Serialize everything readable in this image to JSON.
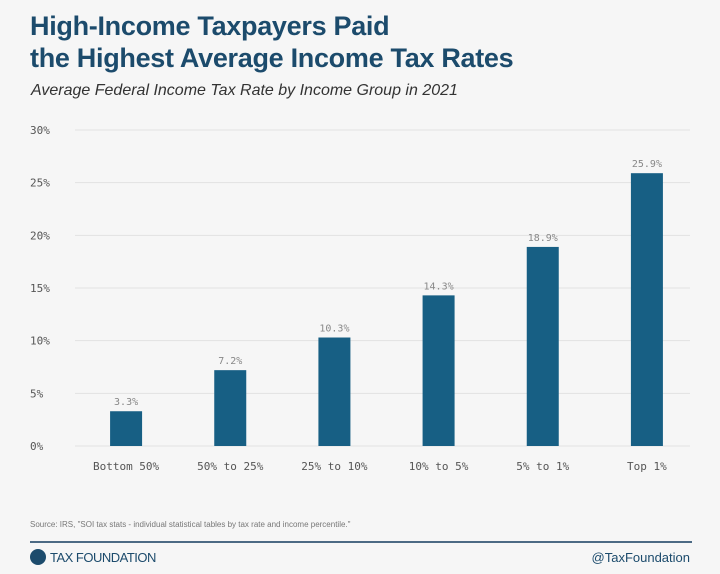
{
  "chart_data": {
    "type": "bar",
    "title": "High-Income Taxpayers Paid\nthe Highest Average Income Tax Rates",
    "subtitle": "Average Federal Income Tax Rate by Income Group in 2021",
    "categories": [
      "Bottom 50%",
      "50% to 25%",
      "25% to 10%",
      "10% to 5%",
      "5% to 1%",
      "Top 1%"
    ],
    "values": [
      3.3,
      7.2,
      10.3,
      14.3,
      18.9,
      25.9
    ],
    "data_labels": [
      "3.3%",
      "7.2%",
      "10.3%",
      "14.3%",
      "18.9%",
      "25.9%"
    ],
    "yticks": [
      "0%",
      "5%",
      "10%",
      "15%",
      "20%",
      "25%",
      "30%"
    ],
    "ylim": [
      0,
      30
    ],
    "xlabel": "",
    "ylabel": "",
    "grid": true,
    "bar_color": "#175f84"
  },
  "footer": {
    "source": "Source: IRS, \"SOI tax stats - individual statistical tables by tax rate and income percentile.\"",
    "brand": "TAX FOUNDATION",
    "handle": "@TaxFoundation"
  }
}
